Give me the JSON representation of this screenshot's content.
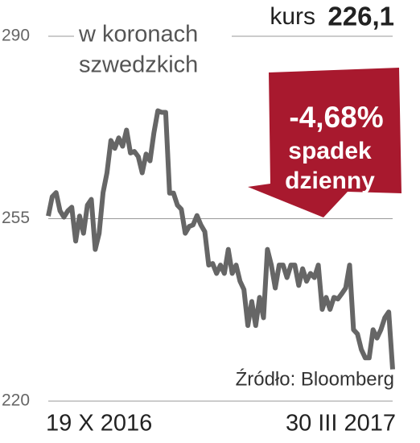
{
  "chart_data": {
    "type": "line",
    "subtitle": [
      "w koronach",
      "szwedzkich"
    ],
    "current": {
      "label": "kurs",
      "value": 226.1,
      "value_label": "226,1"
    },
    "badge": {
      "change": "-4,68%",
      "lines": [
        "spadek",
        "dzienny"
      ]
    },
    "source": "Źródło: Bloomberg",
    "categories": [
      "19 X 2016",
      null,
      null,
      null,
      null,
      null,
      null,
      null,
      null,
      null,
      null,
      null,
      null,
      null,
      null,
      null,
      null,
      null,
      null,
      null,
      null,
      null,
      null,
      null,
      null,
      null,
      null,
      null,
      null,
      null,
      null,
      null,
      null,
      null,
      null,
      null,
      null,
      null,
      null,
      null,
      null,
      null,
      null,
      null,
      null,
      null,
      null,
      null,
      null,
      null,
      null,
      null,
      null,
      null,
      null,
      null,
      null,
      null,
      null,
      null,
      null,
      null,
      null,
      null,
      null,
      null,
      null,
      null,
      null,
      null,
      null,
      null,
      null,
      null,
      null,
      null,
      null,
      null,
      null,
      null,
      null,
      null,
      null,
      null,
      null,
      null,
      null,
      null,
      "30 III 2017"
    ],
    "series": [
      {
        "color": "#666666",
        "values": [
          255.5,
          259.2,
          260.0,
          256.5,
          255.3,
          256.5,
          257.2,
          250.7,
          255.5,
          252.2,
          257.6,
          258.7,
          249.1,
          252.2,
          260.0,
          263.8,
          270.0,
          268.5,
          270.5,
          268.9,
          272.0,
          267.6,
          267.9,
          266.9,
          263.8,
          267.4,
          266.1,
          271.5,
          275.7,
          275.4,
          275.4,
          259.9,
          259.9,
          257.6,
          256.8,
          252.2,
          253.5,
          253.8,
          255.6,
          253.8,
          252.5,
          246.1,
          246.4,
          244.5,
          246.1,
          244.5,
          249.1,
          244.5,
          246.1,
          243.0,
          241.4,
          234.5,
          239.1,
          234.5,
          239.9,
          236.0,
          249.1,
          246.1,
          241.7,
          246.1,
          246.1,
          243.7,
          246.1,
          246.1,
          242.2,
          245.4,
          243.0,
          244.5,
          243.7,
          246.1,
          237.6,
          239.9,
          237.6,
          239.9,
          239.6,
          240.6,
          241.7,
          246.1,
          233.7,
          232.9,
          229.9,
          228.3,
          228.3,
          233.7,
          232.1,
          233.7,
          236.0,
          237.1,
          226.1
        ]
      }
    ],
    "ylim": [
      220,
      290
    ],
    "yticks": [
      220,
      255,
      290
    ],
    "grid": true,
    "badge_color": "#a8192e"
  }
}
